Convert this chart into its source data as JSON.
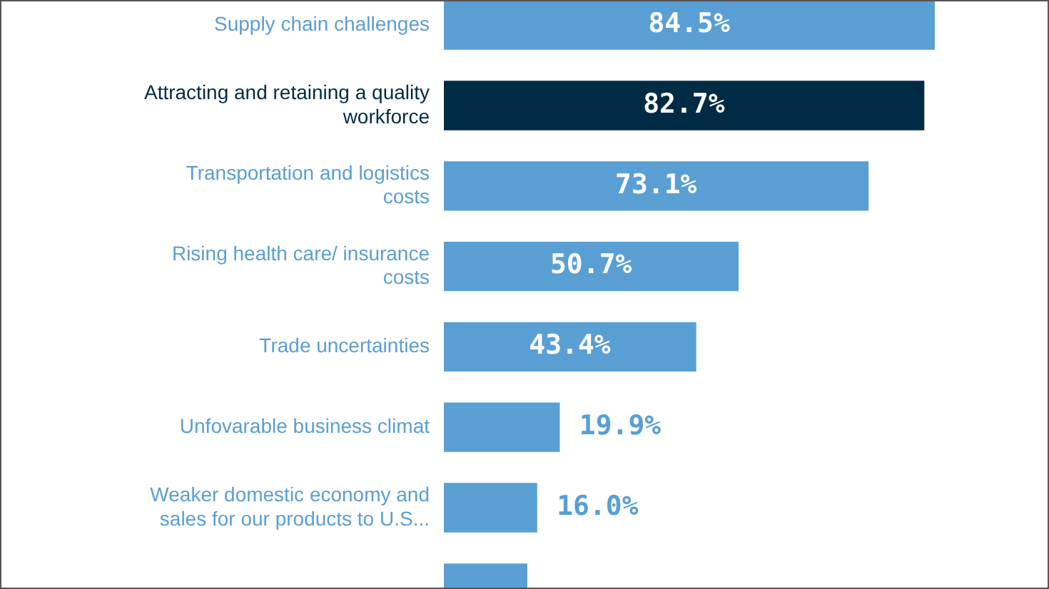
{
  "chart_data": {
    "type": "bar",
    "orientation": "horizontal",
    "categories": [
      "Supply chain challenges",
      "Attracting and retaining a quality workforce",
      "Transportation and logistics costs",
      "Rising health care/ insurance costs",
      "Trade uncertainties",
      "Unfovarable business climat",
      "Weaker domestic economy and sales for our products to U.S...",
      null
    ],
    "values": [
      84.5,
      82.7,
      73.1,
      50.7,
      43.4,
      19.9,
      16.0,
      14.3
    ],
    "colors": [
      "#5a9fd4",
      "#002b45",
      "#5a9fd4",
      "#5a9fd4",
      "#5a9fd4",
      "#5a9fd4",
      "#5a9fd4",
      "#5a9fd4"
    ],
    "value_labels": [
      "84.5%",
      "82.7%",
      "73.1%",
      "50.7%",
      "43.4%",
      "19.9%",
      "16.0%",
      null
    ],
    "grid": false,
    "legend": false
  }
}
